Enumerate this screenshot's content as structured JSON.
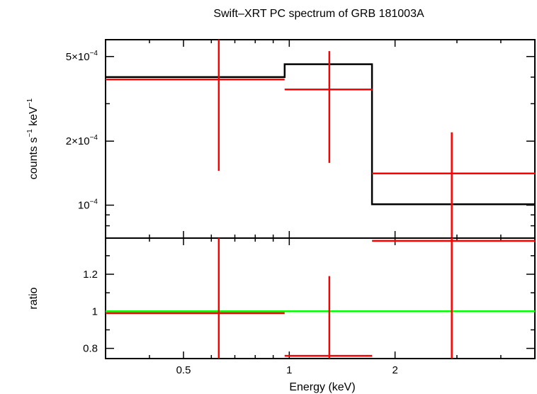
{
  "chart_data": {
    "type": "line",
    "title": "Swift–XRT PC spectrum of GRB 181003A",
    "xlabel": "Energy (keV)",
    "xscale": "log",
    "xlim": [
      0.3,
      5.0
    ],
    "x_ticks": [
      {
        "value": 0.5,
        "label": "0.5"
      },
      {
        "value": 1,
        "label": "1"
      },
      {
        "value": 2,
        "label": "2"
      }
    ],
    "panels": [
      {
        "name": "spectrum",
        "ylabel_main": "counts s",
        "ylabel_sup1": "−1",
        "ylabel_mid": " keV",
        "ylabel_sup2": "−1",
        "yscale": "log",
        "ylim": [
          7e-05,
          0.0006
        ],
        "y_ticks": [
          {
            "value": 0.0005,
            "base": "5×10",
            "exp": "−4"
          },
          {
            "value": 0.0002,
            "base": "2×10",
            "exp": "−4"
          },
          {
            "value": 0.0001,
            "base": "10",
            "exp": "−4"
          }
        ],
        "model": {
          "name": "model",
          "color": "#000000",
          "bins": [
            {
              "x_lo": 0.3,
              "x_hi": 0.97,
              "y": 0.0004
            },
            {
              "x_lo": 0.97,
              "x_hi": 1.72,
              "y": 0.00046
            },
            {
              "x_lo": 1.72,
              "x_hi": 5.0,
              "y": 0.000101
            }
          ]
        },
        "data": {
          "name": "data",
          "color": "#ff0000",
          "points": [
            {
              "x": 0.63,
              "x_lo": 0.3,
              "x_hi": 0.97,
              "y": 0.00039,
              "y_lo": 0.000145,
              "y_hi": 0.0006
            },
            {
              "x": 1.3,
              "x_lo": 0.97,
              "x_hi": 1.72,
              "y": 0.00035,
              "y_lo": 0.000158,
              "y_hi": 0.00053
            },
            {
              "x": 2.9,
              "x_lo": 1.72,
              "x_hi": 5.0,
              "y": 0.000141,
              "y_lo": 7e-05,
              "y_hi": 0.00022
            }
          ]
        }
      },
      {
        "name": "ratio",
        "ylabel": "ratio",
        "yscale": "linear",
        "ylim": [
          0.745,
          1.395
        ],
        "y_ticks": [
          {
            "value": 0.8,
            "label": "0.8"
          },
          {
            "value": 1,
            "label": "1"
          },
          {
            "value": 1.2,
            "label": "1.2"
          }
        ],
        "reference": {
          "name": "unity",
          "color": "#00ff00",
          "value": 1
        },
        "data": {
          "name": "ratio data",
          "color": "#ff0000",
          "points": [
            {
              "x": 0.63,
              "x_lo": 0.3,
              "x_hi": 0.97,
              "y": 0.99,
              "y_lo": 0.745,
              "y_hi": 1.395
            },
            {
              "x": 1.3,
              "x_lo": 0.97,
              "x_hi": 1.72,
              "y": 0.76,
              "y_lo": 0.745,
              "y_hi": 1.19
            },
            {
              "x": 2.9,
              "x_lo": 1.72,
              "x_hi": 5.0,
              "y": 1.38,
              "y_lo": 0.745,
              "y_hi": 1.395
            }
          ]
        }
      }
    ]
  }
}
